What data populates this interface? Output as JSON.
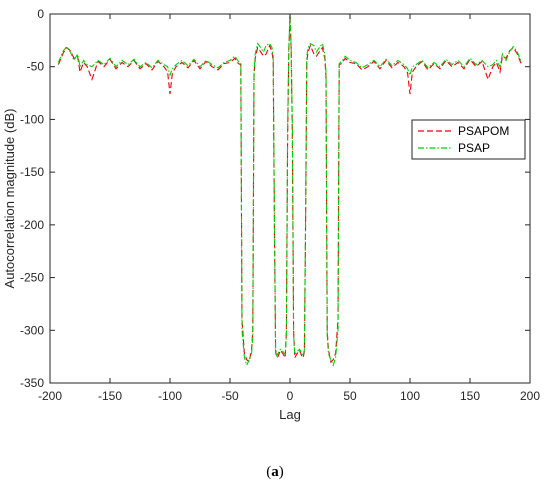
{
  "chart_data": {
    "type": "line",
    "title": "",
    "xlabel": "Lag",
    "ylabel": "Autocorrelation magnitude (dB)",
    "xlim": [
      -200,
      200
    ],
    "ylim": [
      -350,
      0
    ],
    "xticks": [
      -200,
      -150,
      -100,
      -50,
      0,
      50,
      100,
      150,
      200
    ],
    "yticks": [
      0,
      -50,
      -100,
      -150,
      -200,
      -250,
      -300,
      -350
    ],
    "grid": false,
    "legend_position": "right",
    "series": [
      {
        "name": "PSAPOM",
        "color": "#e8000b",
        "dash": "dashed",
        "x": [
          -193,
          -189,
          -186,
          -183,
          -180,
          -177,
          -175,
          -172,
          -169,
          -165,
          -160,
          -155,
          -150,
          -145,
          -140,
          -135,
          -130,
          -125,
          -120,
          -115,
          -110,
          -105,
          -102,
          -100,
          -98,
          -95,
          -90,
          -85,
          -80,
          -75,
          -70,
          -65,
          -60,
          -55,
          -50,
          -46,
          -43,
          -41,
          -40,
          -38,
          -36,
          -34,
          -32,
          -31,
          -30,
          -29,
          -27,
          -25,
          -22,
          -20,
          -17,
          -15,
          -14,
          -13,
          -12,
          -11,
          -10,
          -9,
          -8,
          -6,
          -4,
          -3,
          -2,
          -1,
          0,
          1,
          2,
          3,
          4,
          6,
          8,
          9,
          10,
          11,
          12,
          13,
          14,
          15,
          17,
          20,
          22,
          25,
          27,
          29,
          30,
          31,
          32,
          34,
          36,
          38,
          40,
          41,
          43,
          46,
          50,
          55,
          60,
          65,
          70,
          75,
          80,
          85,
          90,
          95,
          98,
          100,
          102,
          105,
          110,
          115,
          120,
          125,
          130,
          135,
          140,
          145,
          150,
          155,
          160,
          165,
          169,
          172,
          175,
          177,
          180,
          183,
          186,
          189,
          193
        ],
        "values": [
          -48,
          -37,
          -32,
          -35,
          -42,
          -40,
          -55,
          -46,
          -50,
          -62,
          -45,
          -50,
          -43,
          -52,
          -46,
          -50,
          -44,
          -52,
          -47,
          -53,
          -45,
          -50,
          -55,
          -76,
          -56,
          -50,
          -46,
          -51,
          -44,
          -52,
          -45,
          -50,
          -53,
          -47,
          -46,
          -42,
          -47,
          -48,
          -290,
          -322,
          -328,
          -330,
          -318,
          -300,
          -60,
          -42,
          -32,
          -35,
          -40,
          -38,
          -30,
          -36,
          -45,
          -200,
          -320,
          -326,
          -325,
          -322,
          -319,
          -322,
          -326,
          -300,
          -120,
          -35,
          -1,
          -35,
          -120,
          -300,
          -326,
          -322,
          -319,
          -322,
          -325,
          -326,
          -320,
          -200,
          -45,
          -36,
          -30,
          -38,
          -40,
          -35,
          -32,
          -42,
          -60,
          -300,
          -318,
          -330,
          -328,
          -322,
          -290,
          -48,
          -47,
          -42,
          -46,
          -47,
          -53,
          -50,
          -45,
          -52,
          -44,
          -51,
          -46,
          -50,
          -56,
          -76,
          -55,
          -50,
          -45,
          -53,
          -47,
          -52,
          -44,
          -50,
          -46,
          -52,
          -43,
          -50,
          -45,
          -62,
          -50,
          -46,
          -55,
          -40,
          -42,
          -35,
          -32,
          -37,
          -48
        ]
      },
      {
        "name": "PSAP",
        "color": "#00d000",
        "dash": "dashdot",
        "x": [
          -193,
          -189,
          -186,
          -183,
          -180,
          -177,
          -175,
          -172,
          -169,
          -165,
          -160,
          -155,
          -150,
          -145,
          -140,
          -135,
          -130,
          -125,
          -120,
          -115,
          -110,
          -105,
          -102,
          -100,
          -98,
          -95,
          -90,
          -85,
          -80,
          -75,
          -70,
          -65,
          -60,
          -55,
          -50,
          -46,
          -43,
          -41,
          -40,
          -38,
          -36,
          -34,
          -32,
          -31,
          -30,
          -29,
          -27,
          -25,
          -22,
          -20,
          -17,
          -15,
          -14,
          -13,
          -12,
          -11,
          -10,
          -9,
          -8,
          -6,
          -4,
          -3,
          -2,
          -1,
          0,
          1,
          2,
          3,
          4,
          6,
          8,
          9,
          10,
          11,
          12,
          13,
          14,
          15,
          17,
          20,
          22,
          25,
          27,
          29,
          30,
          31,
          32,
          34,
          36,
          38,
          40,
          41,
          43,
          46,
          50,
          55,
          60,
          65,
          70,
          75,
          80,
          85,
          90,
          95,
          98,
          100,
          102,
          105,
          110,
          115,
          120,
          125,
          130,
          135,
          140,
          145,
          150,
          155,
          160,
          165,
          169,
          172,
          175,
          177,
          180,
          183,
          186,
          189,
          193
        ],
        "values": [
          -46,
          -35,
          -31,
          -36,
          -44,
          -38,
          -50,
          -44,
          -48,
          -50,
          -44,
          -48,
          -42,
          -50,
          -44,
          -48,
          -43,
          -50,
          -46,
          -51,
          -44,
          -48,
          -50,
          -58,
          -52,
          -48,
          -44,
          -49,
          -43,
          -50,
          -44,
          -48,
          -51,
          -46,
          -44,
          -40,
          -45,
          -47,
          -300,
          -326,
          -333,
          -328,
          -322,
          -305,
          -55,
          -38,
          -28,
          -31,
          -36,
          -30,
          -28,
          -32,
          -40,
          -190,
          -318,
          -324,
          -322,
          -320,
          -318,
          -320,
          -323,
          -305,
          -110,
          -33,
          0,
          -33,
          -110,
          -305,
          -323,
          -320,
          -318,
          -320,
          -322,
          -324,
          -318,
          -190,
          -40,
          -32,
          -28,
          -30,
          -36,
          -31,
          -28,
          -38,
          -55,
          -305,
          -322,
          -328,
          -333,
          -326,
          -300,
          -47,
          -45,
          -40,
          -44,
          -46,
          -51,
          -48,
          -44,
          -50,
          -43,
          -49,
          -44,
          -48,
          -52,
          -58,
          -50,
          -48,
          -44,
          -51,
          -46,
          -50,
          -43,
          -48,
          -44,
          -50,
          -42,
          -48,
          -44,
          -50,
          -48,
          -44,
          -50,
          -38,
          -44,
          -36,
          -31,
          -35,
          -46
        ]
      }
    ]
  },
  "caption": {
    "open": "(",
    "letter": "a",
    "close": ")"
  }
}
